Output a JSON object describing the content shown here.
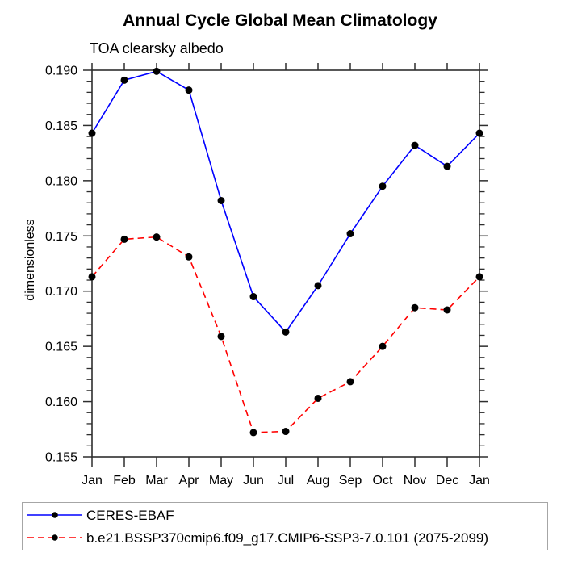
{
  "figure": {
    "title": "Annual Cycle Global Mean Climatology",
    "subtitle": "TOA clearsky albedo",
    "ylabel": "dimensionless"
  },
  "chart_data": {
    "type": "line",
    "title": "Annual Cycle Global Mean Climatology",
    "subtitle": "TOA clearsky albedo",
    "xlabel": "",
    "ylabel": "dimensionless",
    "categories": [
      "Jan",
      "Feb",
      "Mar",
      "Apr",
      "May",
      "Jun",
      "Jul",
      "Aug",
      "Sep",
      "Oct",
      "Nov",
      "Dec",
      "Jan"
    ],
    "ylim": [
      0.155,
      0.19
    ],
    "yticks": [
      0.155,
      0.16,
      0.165,
      0.17,
      0.175,
      0.18,
      0.185,
      0.19
    ],
    "ytick_step": 0.005,
    "yminor_step": 0.001,
    "grid": false,
    "legend_position": "bottom",
    "marker_color": "#000000",
    "frame_color": "#2e2e2e",
    "series": [
      {
        "name": "CERES-EBAF",
        "color": "#0000ff",
        "dash": "solid",
        "marker": "circle",
        "values": [
          0.1843,
          0.1891,
          0.1899,
          0.1882,
          0.1782,
          0.1695,
          0.1663,
          0.1705,
          0.1752,
          0.1795,
          0.1832,
          0.1813,
          0.1843
        ]
      },
      {
        "name": "b.e21.BSSP370cmip6.f09_g17.CMIP6-SSP3-7.0.101 (2075-2099)",
        "color": "#ff0000",
        "dash": "dashed",
        "marker": "circle",
        "values": [
          0.1713,
          0.1747,
          0.1749,
          0.1731,
          0.1659,
          0.1572,
          0.1573,
          0.1603,
          0.1618,
          0.165,
          0.1685,
          0.1683,
          0.1713
        ]
      }
    ]
  }
}
